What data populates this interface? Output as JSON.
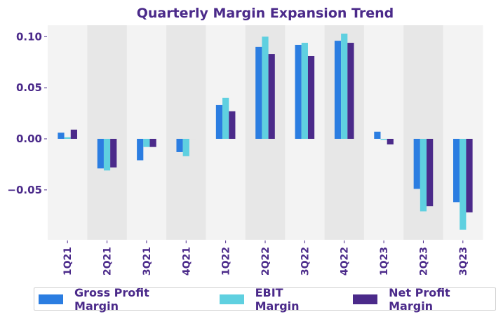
{
  "chart_data": {
    "type": "bar",
    "title": "Quarterly Margin Expansion Trend",
    "xlabel": "",
    "ylabel": "",
    "categories": [
      "1Q21",
      "2Q21",
      "3Q21",
      "4Q21",
      "1Q22",
      "2Q22",
      "3Q22",
      "4Q22",
      "1Q23",
      "2Q23",
      "3Q23"
    ],
    "series": [
      {
        "name": "Gross Profit Margin",
        "color": "#2b7de1",
        "values": [
          0.006,
          -0.029,
          -0.021,
          -0.013,
          0.033,
          0.09,
          0.092,
          0.096,
          0.007,
          -0.049,
          -0.062
        ]
      },
      {
        "name": "EBIT Margin",
        "color": "#5fd0e0",
        "values": [
          0.0015,
          -0.031,
          -0.008,
          -0.017,
          0.04,
          0.1,
          0.094,
          0.103,
          -0.001,
          -0.071,
          -0.089
        ]
      },
      {
        "name": "Net Profit Margin",
        "color": "#4b2a8a",
        "values": [
          0.009,
          -0.028,
          -0.008,
          0.0,
          0.027,
          0.083,
          0.081,
          0.094,
          -0.0055,
          -0.066,
          -0.072
        ]
      }
    ],
    "yticks": [
      0.1,
      0.05,
      0.0,
      -0.05
    ],
    "ytick_labels": [
      "0.10",
      "0.05",
      "0.00",
      "−0.05"
    ],
    "ylim": [
      -0.0985,
      0.111
    ],
    "grid": false,
    "band_colors": [
      "#f3f3f3",
      "#e7e7e7"
    ],
    "legend_position": "bottom"
  }
}
